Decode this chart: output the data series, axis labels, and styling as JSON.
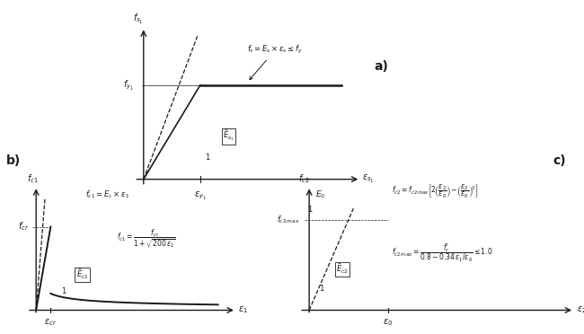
{
  "fig_width": 6.5,
  "fig_height": 3.72,
  "bg_color": "#ffffff",
  "line_color": "#1a1a1a",
  "label_a": "a)",
  "label_b": "b)",
  "label_c": "c)"
}
